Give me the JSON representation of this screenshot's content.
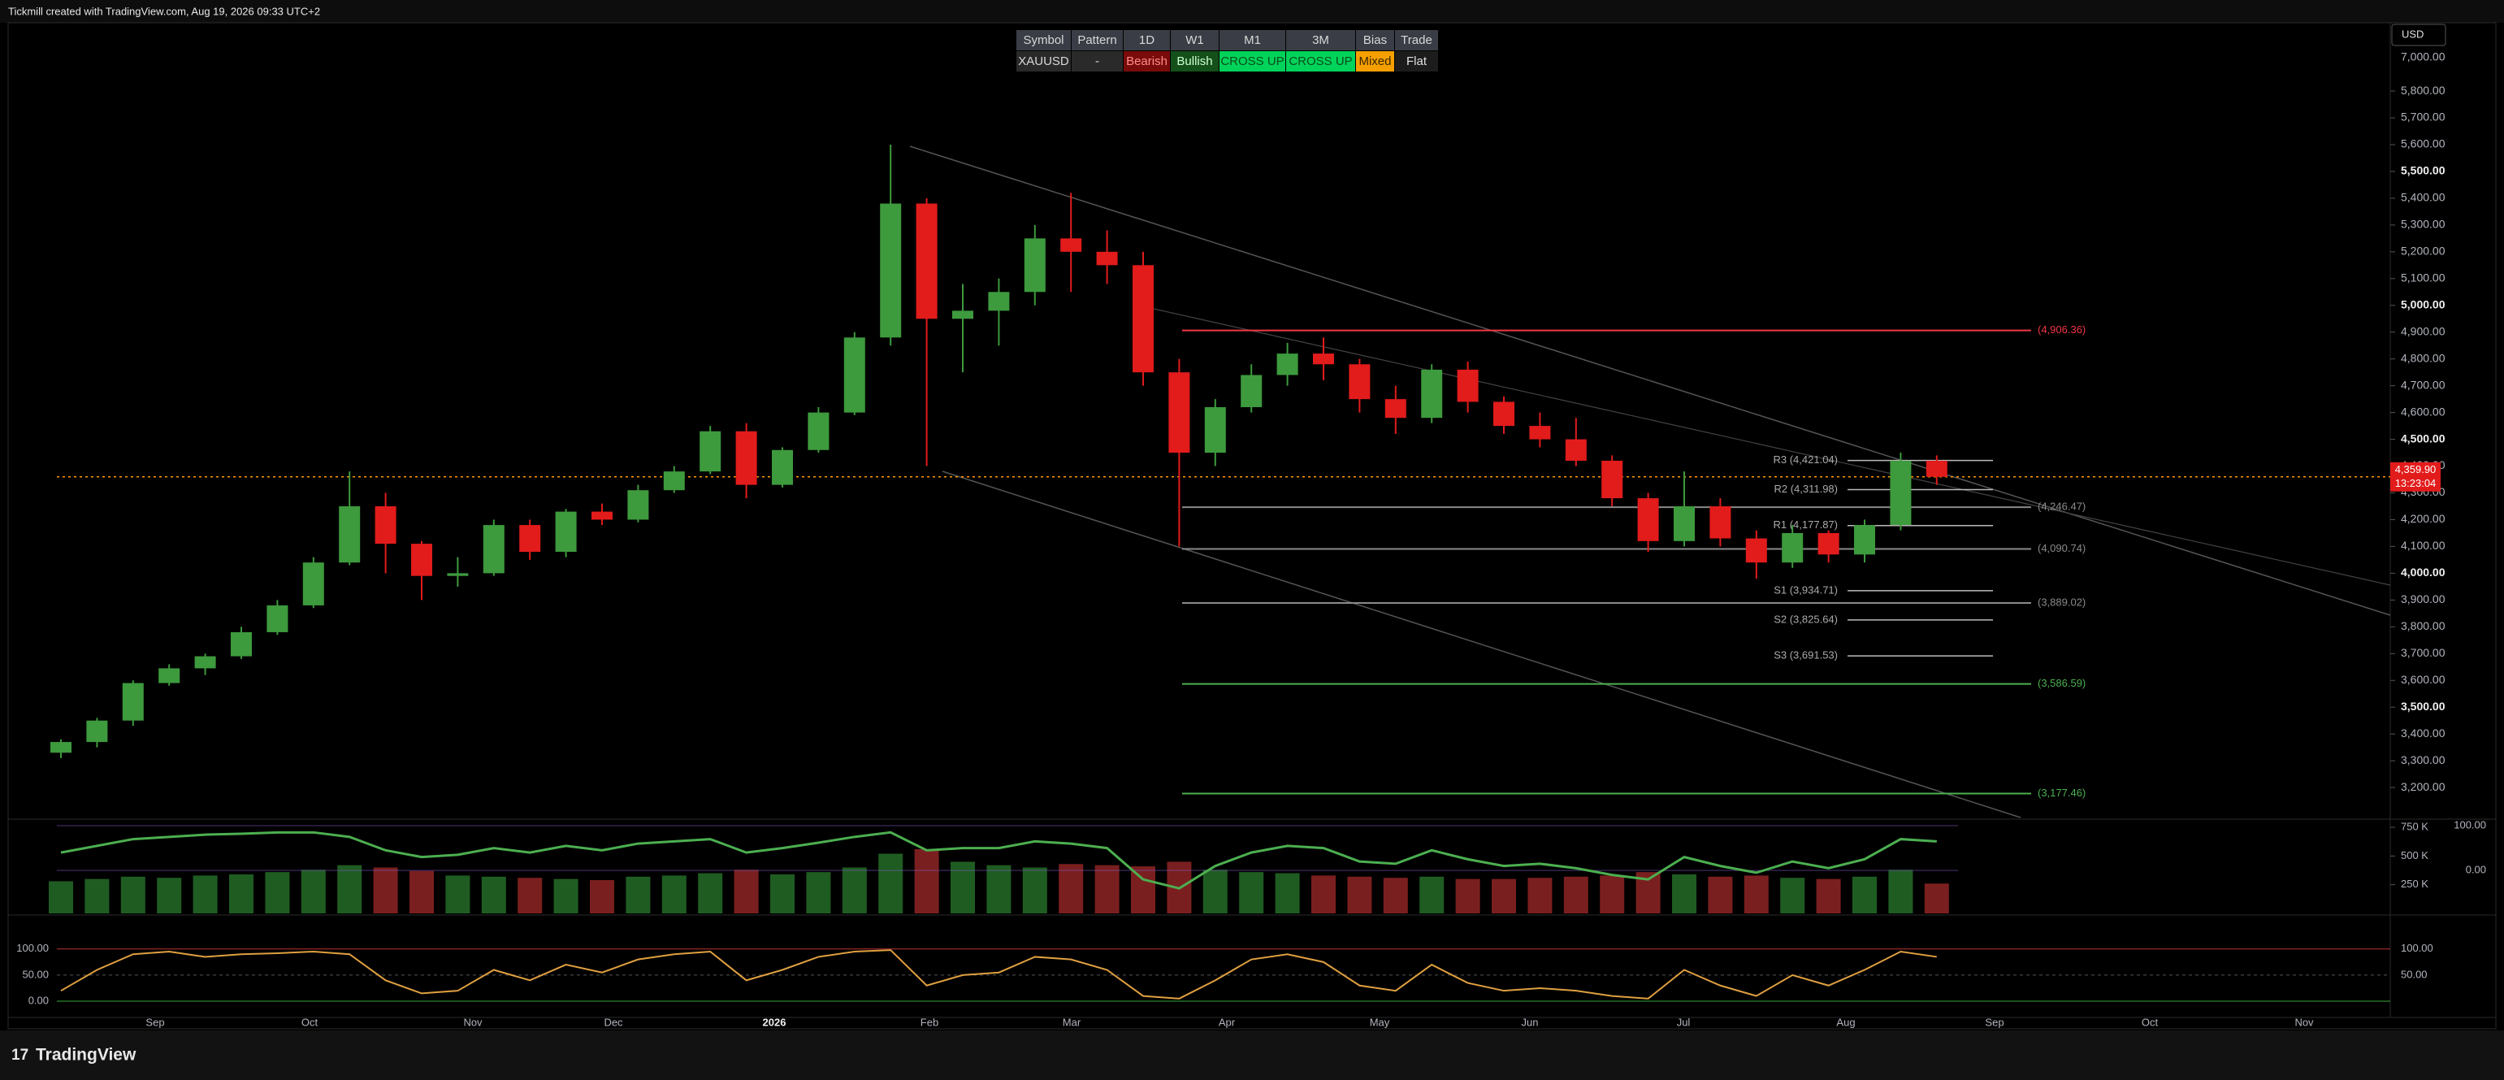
{
  "header": {
    "caption": "Tickmill created with TradingView.com, Aug 19, 2026 09:33 UTC+2",
    "currency": "USD"
  },
  "table": {
    "header": [
      "Symbol",
      "Pattern",
      "1D",
      "W1",
      "M1",
      "3M",
      "Bias",
      "Trade"
    ],
    "row": [
      "XAUUSD",
      "-",
      "Bearish",
      "Bullish",
      "CROSS UP",
      "CROSS UP",
      "Mixed",
      "Flat"
    ]
  },
  "chart_data": {
    "type": "candlestick",
    "up_color": "#3d9a3d",
    "down_color": "#e21b1b",
    "open": [
      3330,
      3370,
      3450,
      3590,
      3645,
      3690,
      3780,
      3880,
      4040,
      4250,
      4110,
      3990,
      4000,
      4180,
      4080,
      4230,
      4200,
      4310,
      4380,
      4530,
      4330,
      4460,
      4600,
      4880,
      5380,
      4950,
      4980,
      5050,
      5250,
      5200,
      5150,
      4750,
      4450,
      4620,
      4740,
      4820,
      4780,
      4650,
      4580,
      4760,
      4640,
      4550,
      4500,
      4420,
      4280,
      4120,
      4250,
      4130,
      4040,
      4150,
      4070,
      4180,
      4420
    ],
    "high": [
      3380,
      3460,
      3600,
      3660,
      3700,
      3800,
      3900,
      4060,
      4380,
      4300,
      4120,
      4060,
      4200,
      4200,
      4240,
      4260,
      4330,
      4400,
      4550,
      4560,
      4470,
      4620,
      4900,
      5600,
      5400,
      5080,
      5100,
      5300,
      5420,
      5280,
      5200,
      4800,
      4650,
      4780,
      4860,
      4880,
      4800,
      4700,
      4780,
      4790,
      4660,
      4600,
      4580,
      4440,
      4300,
      4380,
      4280,
      4160,
      4180,
      4160,
      4200,
      4450,
      4440
    ],
    "low": [
      3310,
      3350,
      3430,
      3580,
      3620,
      3680,
      3770,
      3870,
      4030,
      4000,
      3900,
      3950,
      3990,
      4050,
      4060,
      4180,
      4190,
      4300,
      4370,
      4280,
      4320,
      4450,
      4590,
      4850,
      4400,
      4750,
      4850,
      5000,
      5050,
      5080,
      4700,
      4100,
      4400,
      4600,
      4700,
      4720,
      4600,
      4520,
      4560,
      4600,
      4520,
      4470,
      4400,
      4250,
      4080,
      4100,
      4100,
      3980,
      4020,
      4040,
      4040,
      4160,
      4330
    ],
    "close": [
      3370,
      3450,
      3590,
      3645,
      3690,
      3780,
      3880,
      4040,
      4250,
      4110,
      3990,
      4000,
      4180,
      4080,
      4230,
      4200,
      4310,
      4380,
      4530,
      4330,
      4460,
      4600,
      4880,
      5380,
      4950,
      4980,
      5050,
      5250,
      5200,
      5150,
      4750,
      4450,
      4620,
      4740,
      4820,
      4780,
      4650,
      4580,
      4760,
      4640,
      4550,
      4500,
      4420,
      4280,
      4120,
      4250,
      4130,
      4040,
      4150,
      4070,
      4180,
      4420,
      4359.9
    ],
    "ylim": [
      3082,
      6055
    ],
    "yticks": [
      {
        "value": 3200,
        "label": "3,200.00"
      },
      {
        "value": 3300,
        "label": "3,300.00"
      },
      {
        "value": 3400,
        "label": "3,400.00"
      },
      {
        "value": 3500,
        "label": "3,500.00"
      },
      {
        "value": 3600,
        "label": "3,600.00"
      },
      {
        "value": 3700,
        "label": "3,700.00"
      },
      {
        "value": 3800,
        "label": "3,800.00"
      },
      {
        "value": 3900,
        "label": "3,900.00"
      },
      {
        "value": 4000,
        "label": "4,000.00"
      },
      {
        "value": 4100,
        "label": "4,100.00"
      },
      {
        "value": 4200,
        "label": "4,200.00"
      },
      {
        "value": 4300,
        "label": "4,300.00"
      },
      {
        "value": 4400,
        "label": "4,400.00"
      },
      {
        "value": 4500,
        "label": "4,500.00"
      },
      {
        "value": 4600,
        "label": "4,600.00"
      },
      {
        "value": 4700,
        "label": "4,700.00"
      },
      {
        "value": 4800,
        "label": "4,800.00"
      },
      {
        "value": 4900,
        "label": "4,900.00"
      },
      {
        "value": 5000,
        "label": "5,000.00"
      },
      {
        "value": 5100,
        "label": "5,100.00"
      },
      {
        "value": 5200,
        "label": "5,200.00"
      },
      {
        "value": 5300,
        "label": "5,300.00"
      },
      {
        "value": 5400,
        "label": "5,400.00"
      },
      {
        "value": 5500,
        "label": "5,500.00"
      },
      {
        "value": 5600,
        "label": "5,600.00"
      },
      {
        "value": 5700,
        "label": "5,700.00"
      },
      {
        "value": 5800,
        "label": "5,800.00"
      }
    ],
    "scale_top_label": "7,000.00",
    "last_price": {
      "value": 4359.9,
      "label": "4,359.90"
    },
    "countdown": "13:23:04",
    "pivots": [
      {
        "value": 4421.04,
        "label": "R3 (4,421.04)"
      },
      {
        "value": 4311.98,
        "label": "R2 (4,311.98)"
      },
      {
        "value": 4177.87,
        "label": "R1 (4,177.87)"
      },
      {
        "value": 3934.71,
        "label": "S1 (3,934.71)"
      },
      {
        "value": 3825.64,
        "label": "S2 (3,825.64)"
      },
      {
        "value": 3691.53,
        "label": "S3 (3,691.53)"
      }
    ],
    "zones": [
      {
        "value": 4906.36,
        "label": "(4,906.36)",
        "color": "#f23645"
      },
      {
        "value": 4246.47,
        "label": "(4,246.47)",
        "color": "#8a8a8a"
      },
      {
        "value": 4090.74,
        "label": "(4,090.74)",
        "color": "#8a8a8a"
      },
      {
        "value": 3889.02,
        "label": "(3,889.02)",
        "color": "#8a8a8a"
      },
      {
        "value": 3586.59,
        "label": "(3,586.59)",
        "color": "#4caf50"
      },
      {
        "value": 3177.46,
        "label": "(3,177.46)",
        "color": "#4caf50"
      }
    ],
    "time_labels": [
      "Sep",
      "Oct",
      "Nov",
      "Dec",
      "2026",
      "Feb",
      "Mar",
      "Apr",
      "May",
      "Jun",
      "Jul",
      "Aug",
      "Sep",
      "Oct",
      "Nov"
    ],
    "volume": {
      "values": [
        280,
        300,
        320,
        310,
        330,
        340,
        360,
        380,
        420,
        400,
        370,
        330,
        320,
        310,
        300,
        290,
        320,
        330,
        350,
        380,
        340,
        360,
        400,
        520,
        560,
        450,
        420,
        400,
        430,
        420,
        410,
        450,
        380,
        360,
        350,
        330,
        320,
        310,
        320,
        300,
        300,
        310,
        320,
        330,
        360,
        340,
        320,
        330,
        310,
        300,
        320,
        380,
        260
      ],
      "ylim": [
        0,
        807
      ],
      "yticks": [
        {
          "value": 250,
          "label": "250 K"
        },
        {
          "value": 500,
          "label": "500 K"
        },
        {
          "value": 750,
          "label": "750 K"
        }
      ]
    },
    "overlay": {
      "color": "#4caf50",
      "values": [
        40,
        55,
        70,
        75,
        80,
        82,
        85,
        85,
        75,
        45,
        30,
        35,
        50,
        40,
        55,
        45,
        60,
        65,
        70,
        40,
        50,
        62,
        75,
        85,
        45,
        50,
        50,
        65,
        60,
        50,
        -20,
        -40,
        10,
        40,
        55,
        50,
        20,
        15,
        45,
        25,
        10,
        15,
        5,
        -10,
        -20,
        30,
        10,
        -5,
        20,
        5,
        25,
        70,
        65
      ],
      "y2lim": [
        -96,
        111
      ],
      "y2ticks": [
        {
          "value": 0,
          "label": "0.00"
        },
        {
          "value": 100,
          "label": "100.00"
        }
      ]
    },
    "stochastic": {
      "color": "#e0a040",
      "values": [
        20,
        60,
        90,
        95,
        85,
        90,
        92,
        95,
        90,
        40,
        15,
        20,
        60,
        40,
        70,
        55,
        80,
        90,
        95,
        40,
        60,
        85,
        95,
        98,
        30,
        50,
        55,
        85,
        80,
        60,
        10,
        5,
        40,
        80,
        90,
        75,
        30,
        20,
        70,
        35,
        20,
        25,
        20,
        10,
        5,
        60,
        30,
        10,
        50,
        30,
        60,
        95,
        85
      ],
      "ylim": [
        -28,
        162
      ],
      "yticks": [
        {
          "value": 0,
          "label": "0.00"
        },
        {
          "value": 50,
          "label": "50.00"
        },
        {
          "value": 100,
          "label": "100.00"
        }
      ]
    }
  },
  "footer": {
    "brand": "TradingView"
  }
}
